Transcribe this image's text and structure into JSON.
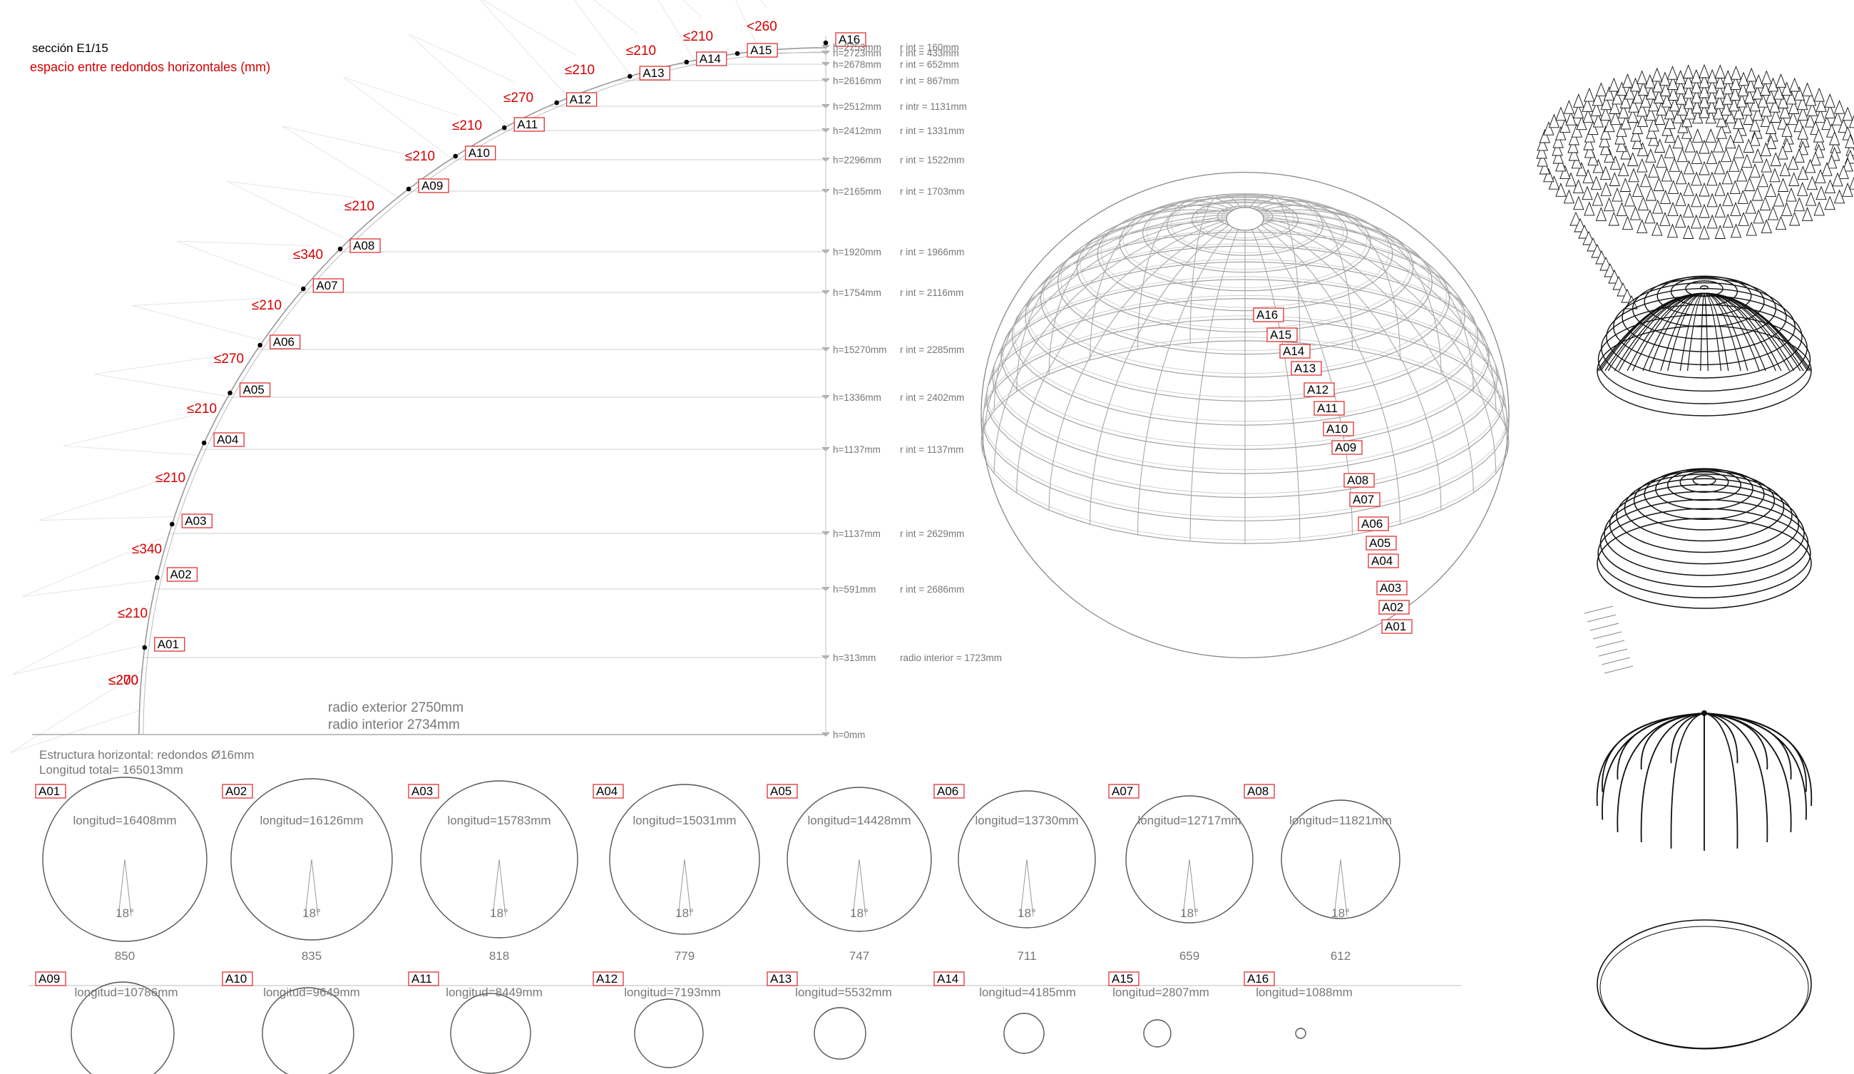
{
  "header": {
    "section": "sección E1/15",
    "subtitle": "espacio entre redondos horizontales (mm)"
  },
  "section_labels": [
    "A16",
    "A15",
    "A14",
    "A13",
    "A12",
    "A11",
    "A10",
    "A09",
    "A08",
    "A07",
    "A06",
    "A05",
    "A04",
    "A03",
    "A02",
    "A01"
  ],
  "gap_labels": [
    "<260",
    "≤210",
    "≤210",
    "≤210",
    "≤270",
    "≤210",
    "≤210",
    "≤210",
    "≤340",
    "≤210",
    "≤270",
    "≤210",
    "≤210",
    "≤340",
    "≤210",
    "≤270",
    "≤200"
  ],
  "levels": [
    {
      "h": "h=2753mm",
      "r": "r int = 160mm"
    },
    {
      "h": "h=2723mm",
      "r": "r int = 433mm"
    },
    {
      "h": "h=2678mm",
      "r": "r int = 652mm"
    },
    {
      "h": "h=2616mm",
      "r": "r int = 867mm"
    },
    {
      "h": "h=2512mm",
      "r": "r intr = 1131mm"
    },
    {
      "h": "h=2412mm",
      "r": "r int = 1331mm"
    },
    {
      "h": "h=2296mm",
      "r": "r int = 1522mm"
    },
    {
      "h": "h=2165mm",
      "r": "r int = 1703mm"
    },
    {
      "h": "h=1920mm",
      "r": "r int = 1966mm"
    },
    {
      "h": "h=1754mm",
      "r": "r int = 2116mm"
    },
    {
      "h": "h=15270mm",
      "r": "r int = 2285mm"
    },
    {
      "h": "h=1336mm",
      "r": "r int = 2402mm"
    },
    {
      "h": "h=1137mm",
      "r": "r int = 1137mm"
    },
    {
      "h": "h=1137mm",
      "r": "r int = 2629mm"
    },
    {
      "h": "h=591mm",
      "r": "r int = 2686mm"
    },
    {
      "h": "h=313mm",
      "r": "radio interior = 1723mm"
    },
    {
      "h": "h=0mm",
      "r": ""
    }
  ],
  "radius": {
    "exterior": "radio exterior 2750mm",
    "interior": "radio interior 2734mm"
  },
  "structure": {
    "title": "Estructura horizontal: redondos Ø16mm",
    "total": "Longitud total= 165013mm"
  },
  "rings_row1": [
    {
      "id": "A01",
      "length": "longitud=16408mm",
      "angle": "18°",
      "chord": "850"
    },
    {
      "id": "A02",
      "length": "longitud=16126mm",
      "angle": "18°",
      "chord": "835"
    },
    {
      "id": "A03",
      "length": "longitud=15783mm",
      "angle": "18°",
      "chord": "818"
    },
    {
      "id": "A04",
      "length": "longitud=15031mm",
      "angle": "18°",
      "chord": "779"
    },
    {
      "id": "A05",
      "length": "longitud=14428mm",
      "angle": "18°",
      "chord": "747"
    },
    {
      "id": "A06",
      "length": "longitud=13730mm",
      "angle": "18°",
      "chord": "711"
    },
    {
      "id": "A07",
      "length": "longitud=12717mm",
      "angle": "18°",
      "chord": "659"
    },
    {
      "id": "A08",
      "length": "longitud=11821mm",
      "angle": "18°",
      "chord": "612"
    }
  ],
  "rings_row2": [
    {
      "id": "A09",
      "length": "longitud=10786mm"
    },
    {
      "id": "A10",
      "length": "longitud=9649mm"
    },
    {
      "id": "A11",
      "length": "longitud=8449mm"
    },
    {
      "id": "A12",
      "length": "longitud=7193mm"
    },
    {
      "id": "A13",
      "length": "longitud=5532mm"
    },
    {
      "id": "A14",
      "length": "longitud=4185mm"
    },
    {
      "id": "A15",
      "length": "longitud=2807mm"
    },
    {
      "id": "A16",
      "length": "longitud=1088mm"
    }
  ],
  "dome_labels": [
    "A16",
    "A15",
    "A14",
    "A13",
    "A12",
    "A11",
    "A10",
    "A09",
    "A08",
    "A07",
    "A06",
    "A05",
    "A04",
    "A03",
    "A02",
    "A01"
  ]
}
